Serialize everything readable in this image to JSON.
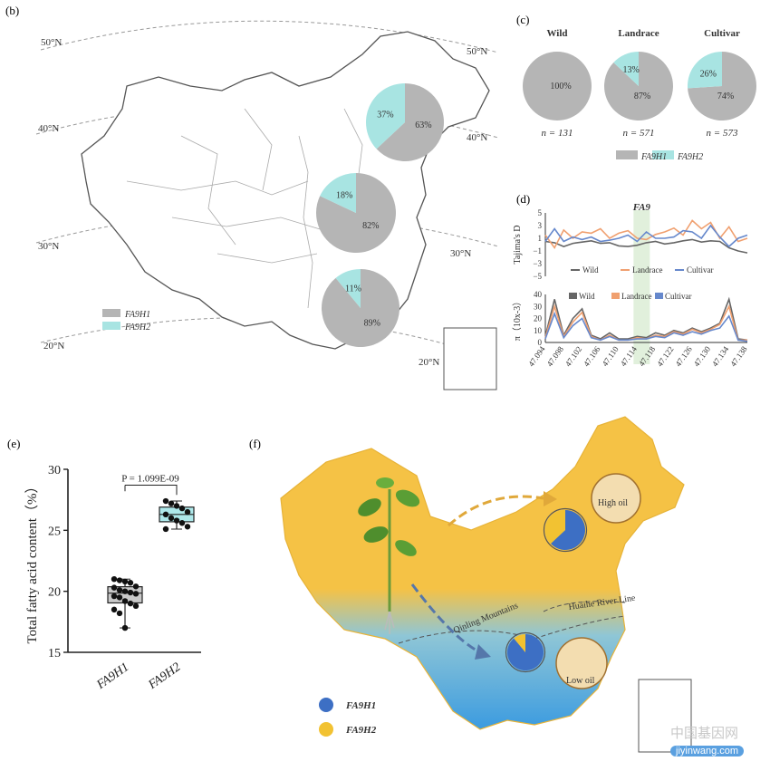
{
  "panel_b": {
    "label": "(b)",
    "lat_labels": [
      "50°N",
      "50°N",
      "40°N",
      "40°N",
      "30°N",
      "30°N",
      "20°N",
      "20°N"
    ],
    "pies": [
      {
        "h1_pct": 63,
        "h2_pct": 37,
        "h1_label": "63%",
        "h2_label": "37%"
      },
      {
        "h1_pct": 82,
        "h2_pct": 18,
        "h1_label": "82%",
        "h2_label": "18%"
      },
      {
        "h1_pct": 89,
        "h2_pct": 11,
        "h1_label": "89%",
        "h2_label": "11%"
      }
    ],
    "legend": [
      "FA9H1",
      "FA9H2"
    ]
  },
  "panel_c": {
    "label": "(c)",
    "groups": [
      {
        "name": "Wild",
        "h1_pct": 100,
        "h2_pct": 0,
        "h1_label": "100%",
        "h2_label": "",
        "n": "n = 131"
      },
      {
        "name": "Landrace",
        "h1_pct": 87,
        "h2_pct": 13,
        "h1_label": "87%",
        "h2_label": "13%",
        "n": "n = 571"
      },
      {
        "name": "Cultivar",
        "h1_pct": 74,
        "h2_pct": 26,
        "h1_label": "74%",
        "h2_label": "26%",
        "n": "n = 573"
      }
    ],
    "legend": [
      "FA9H1",
      "FA9H2"
    ]
  },
  "panel_d": {
    "label": "(d)",
    "gene": "FA9",
    "top_ylabel": "Tajima's D",
    "top_yticks": [
      "5",
      "3",
      "1",
      "−1",
      "−3",
      "−5"
    ],
    "top_legend": [
      "Wild",
      "Landrace",
      "Cultivar"
    ],
    "bottom_ylabel": "π（10x-3）",
    "bottom_yticks": [
      "40",
      "30",
      "20",
      "10",
      "0"
    ],
    "bottom_legend": [
      "Wild",
      "Landrace",
      "Cultivar"
    ],
    "xticks": [
      "47.094",
      "47.098",
      "47.102",
      "47.106",
      "47.110",
      "47.114",
      "47.118",
      "47.122",
      "47.126",
      "47.130",
      "47.134",
      "47.138"
    ]
  },
  "panel_e": {
    "label": "(e)",
    "ylabel": "Total fatty acid content（%）",
    "yticks": [
      "30",
      "25",
      "20",
      "15"
    ],
    "pvalue": "P = 1.099E-09",
    "xlabels": [
      "FA9H1",
      "FA9H2"
    ]
  },
  "panel_f": {
    "label": "(f)",
    "high_oil": "High oil",
    "low_oil": "Low oil",
    "qinling": "Qinling Mountains",
    "huaihe": "Huaihe River Line",
    "legend": [
      "FA9H1",
      "FA9H2"
    ],
    "pies": [
      {
        "h1_pct": 63,
        "h2_pct": 37
      },
      {
        "h1_pct": 89,
        "h2_pct": 11
      }
    ]
  },
  "watermark": {
    "cn": "中国基因网",
    "url": "jiyinwang.com"
  },
  "chart_data": [
    {
      "type": "pie",
      "title": "",
      "panel": "b",
      "pies": [
        {
          "slices": [
            {
              "name": "FA9H1",
              "value": 63
            },
            {
              "name": "FA9H2",
              "value": 37
            }
          ]
        },
        {
          "slices": [
            {
              "name": "FA9H1",
              "value": 82
            },
            {
              "name": "FA9H2",
              "value": 18
            }
          ]
        },
        {
          "slices": [
            {
              "name": "FA9H1",
              "value": 89
            },
            {
              "name": "FA9H2",
              "value": 11
            }
          ]
        }
      ]
    },
    {
      "type": "pie",
      "panel": "c",
      "pies": [
        {
          "name": "Wild",
          "n": 131,
          "slices": [
            {
              "name": "FA9H1",
              "value": 100
            },
            {
              "name": "FA9H2",
              "value": 0
            }
          ]
        },
        {
          "name": "Landrace",
          "n": 571,
          "slices": [
            {
              "name": "FA9H1",
              "value": 87
            },
            {
              "name": "FA9H2",
              "value": 13
            }
          ]
        },
        {
          "name": "Cultivar",
          "n": 573,
          "slices": [
            {
              "name": "FA9H1",
              "value": 74
            },
            {
              "name": "FA9H2",
              "value": 26
            }
          ]
        }
      ]
    },
    {
      "type": "line",
      "panel": "d-top",
      "ylabel": "Tajima's D",
      "ylim": [
        -5,
        5
      ],
      "x": [
        47.094,
        47.096,
        47.098,
        47.1,
        47.102,
        47.104,
        47.106,
        47.108,
        47.11,
        47.112,
        47.114,
        47.116,
        47.118,
        47.12,
        47.122,
        47.124,
        47.126,
        47.128,
        47.13,
        47.132,
        47.134,
        47.136,
        47.138
      ],
      "series": [
        {
          "name": "Wild",
          "color": "#666666",
          "values": [
            0.5,
            0.3,
            -0.3,
            0.2,
            0.4,
            0.6,
            0.2,
            0.3,
            -0.2,
            -0.3,
            -0.1,
            0.3,
            0.5,
            0.1,
            0.3,
            0.6,
            0.8,
            0.4,
            0.6,
            0.5,
            -0.5,
            -1.0,
            -1.3
          ]
        },
        {
          "name": "Landrace",
          "color": "#f0a070",
          "values": [
            1.5,
            -0.5,
            2.3,
            1.0,
            2.0,
            1.8,
            2.5,
            1.0,
            1.8,
            2.2,
            1.0,
            0.8,
            1.6,
            2.0,
            2.6,
            1.5,
            3.8,
            2.5,
            3.5,
            1.0,
            2.8,
            0.5,
            1.0
          ]
        },
        {
          "name": "Cultivar",
          "color": "#6688cc",
          "values": [
            0.5,
            2.5,
            0.5,
            1.2,
            0.8,
            1.2,
            0.5,
            0.7,
            1.0,
            1.5,
            0.5,
            2.0,
            1.0,
            1.0,
            1.2,
            2.2,
            2.0,
            1.0,
            3.0,
            1.2,
            -0.3,
            1.0,
            1.5
          ]
        }
      ]
    },
    {
      "type": "line",
      "panel": "d-bottom",
      "ylabel": "π（10x-3）",
      "ylim": [
        0,
        40
      ],
      "x": [
        47.094,
        47.096,
        47.098,
        47.1,
        47.102,
        47.104,
        47.106,
        47.108,
        47.11,
        47.112,
        47.114,
        47.116,
        47.118,
        47.12,
        47.122,
        47.124,
        47.126,
        47.128,
        47.13,
        47.132,
        47.134,
        47.136,
        47.138
      ],
      "series": [
        {
          "name": "Wild",
          "color": "#666666",
          "values": [
            5,
            36,
            6,
            20,
            28,
            6,
            3,
            8,
            3,
            3,
            5,
            4,
            8,
            6,
            10,
            8,
            12,
            9,
            12,
            16,
            36,
            3,
            2
          ]
        },
        {
          "name": "Landrace",
          "color": "#f0a070",
          "values": [
            4,
            30,
            5,
            17,
            25,
            5,
            2,
            6,
            2,
            2,
            4,
            3,
            6,
            5,
            9,
            7,
            11,
            8,
            11,
            15,
            30,
            2,
            2
          ]
        },
        {
          "name": "Cultivar",
          "color": "#6688cc",
          "values": [
            3,
            24,
            4,
            14,
            20,
            4,
            2,
            5,
            2,
            2,
            3,
            3,
            5,
            4,
            8,
            6,
            9,
            7,
            10,
            12,
            22,
            2,
            1
          ]
        }
      ]
    },
    {
      "type": "scatter",
      "panel": "e",
      "ylabel": "Total fatty acid content（%）",
      "ylim": [
        15,
        30
      ],
      "categories": [
        "FA9H1",
        "FA9H2"
      ],
      "series": [
        {
          "name": "FA9H1",
          "values": [
            21.0,
            20.9,
            20.8,
            20.7,
            20.4,
            20.3,
            20.1,
            20.0,
            19.9,
            19.8,
            19.6,
            19.5,
            19.2,
            19.0,
            18.8,
            18.5,
            18.2,
            17.0
          ]
        },
        {
          "name": "FA9H2",
          "values": [
            27.4,
            27.2,
            27.0,
            26.8,
            26.5,
            26.3,
            26.0,
            25.8,
            25.6,
            25.3,
            25.1
          ]
        }
      ]
    }
  ]
}
